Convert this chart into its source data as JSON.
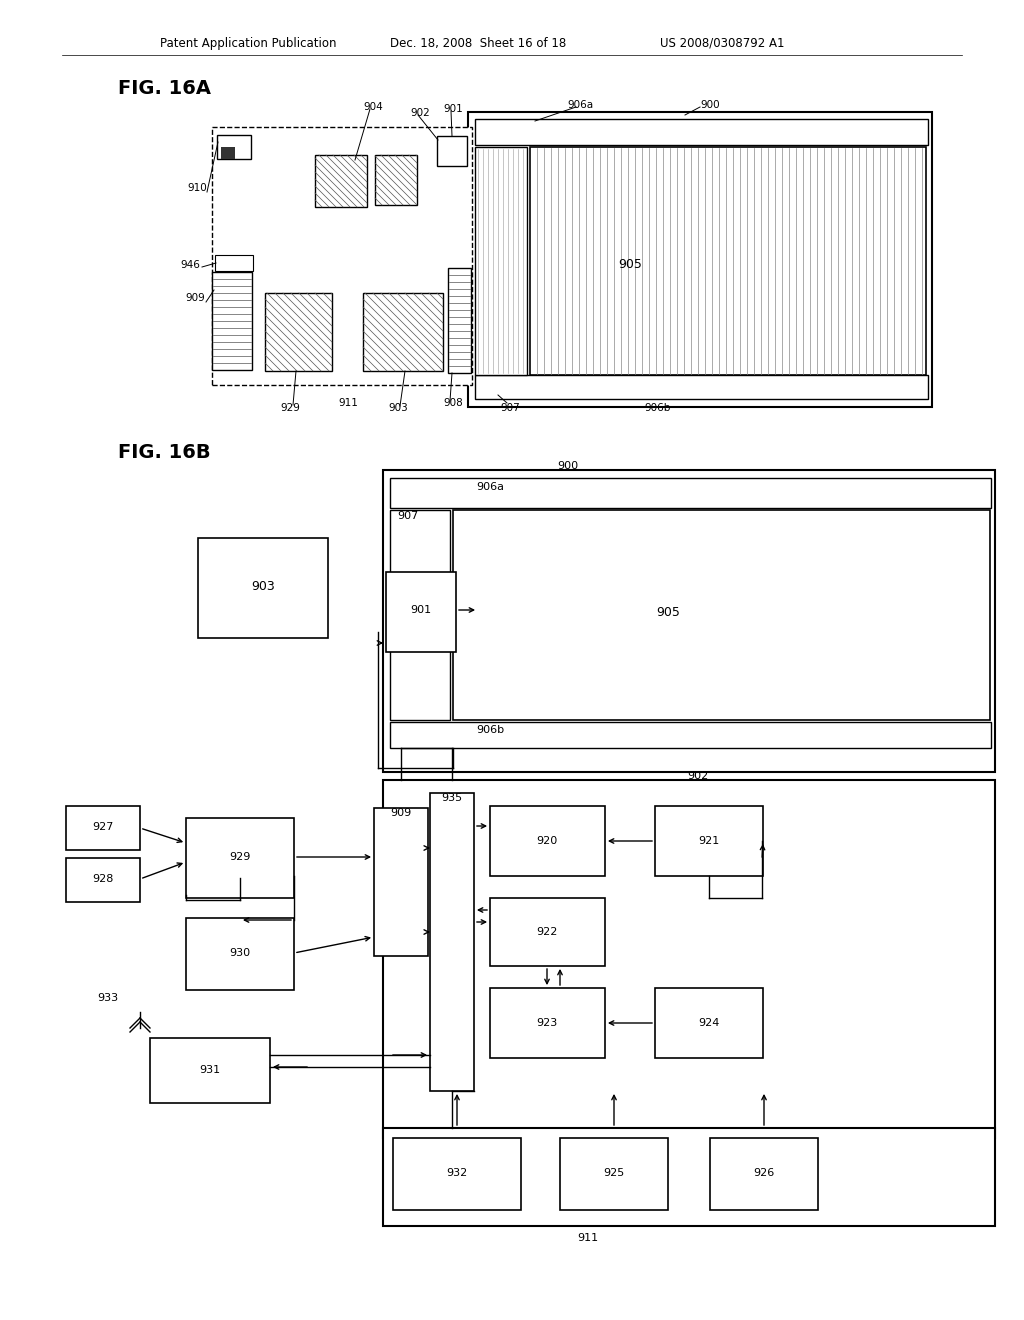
{
  "bg": "#ffffff",
  "fg": "#000000",
  "header_left": "Patent Application Publication",
  "header_mid": "Dec. 18, 2008  Sheet 16 of 18",
  "header_right": "US 2008/0308792 A1",
  "fig16a": "FIG. 16A",
  "fig16b": "FIG. 16B"
}
